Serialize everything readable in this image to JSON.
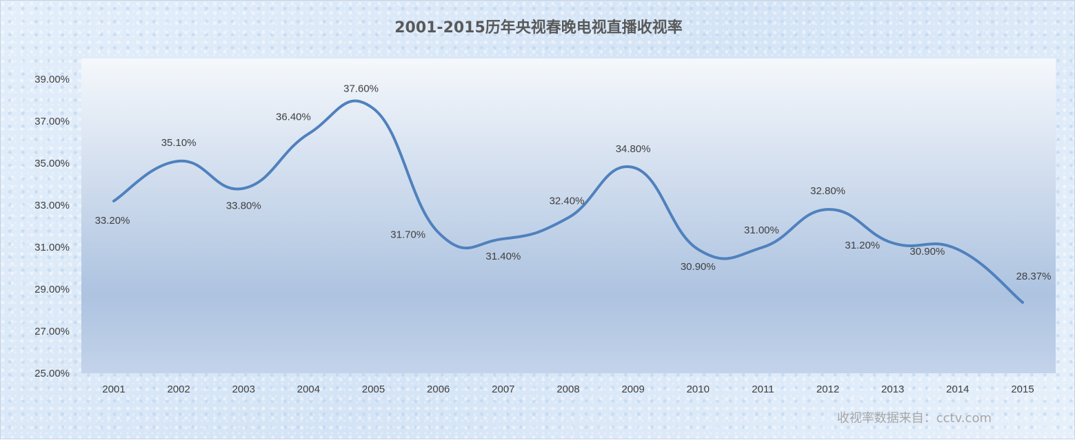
{
  "chart_data": {
    "type": "line",
    "title": "2001-2015历年央视春晚电视直播收视率",
    "xlabel": "",
    "ylabel": "",
    "categories": [
      "2001",
      "2002",
      "2003",
      "2004",
      "2005",
      "2006",
      "2007",
      "2008",
      "2009",
      "2010",
      "2011",
      "2012",
      "2013",
      "2014",
      "2015"
    ],
    "series": [
      {
        "values": [
          33.2,
          35.1,
          33.8,
          36.4,
          37.6,
          31.7,
          31.4,
          32.4,
          34.8,
          30.9,
          31.0,
          32.8,
          31.2,
          30.9,
          28.37
        ],
        "labels": [
          "33.20%",
          "35.10%",
          "33.80%",
          "36.40%",
          "37.60%",
          "31.70%",
          "31.40%",
          "32.40%",
          "34.80%",
          "30.90%",
          "31.00%",
          "32.80%",
          "31.20%",
          "30.90%",
          "28.37%"
        ],
        "color": "#4f81bd"
      }
    ],
    "ylim": [
      25,
      39
    ],
    "yticks": [
      "25.00%",
      "27.00%",
      "29.00%",
      "31.00%",
      "33.00%",
      "35.00%",
      "37.00%",
      "39.00%"
    ],
    "smooth": true,
    "grid": false,
    "legend": "none"
  },
  "source_note": "收视率数据来自：cctv.com"
}
